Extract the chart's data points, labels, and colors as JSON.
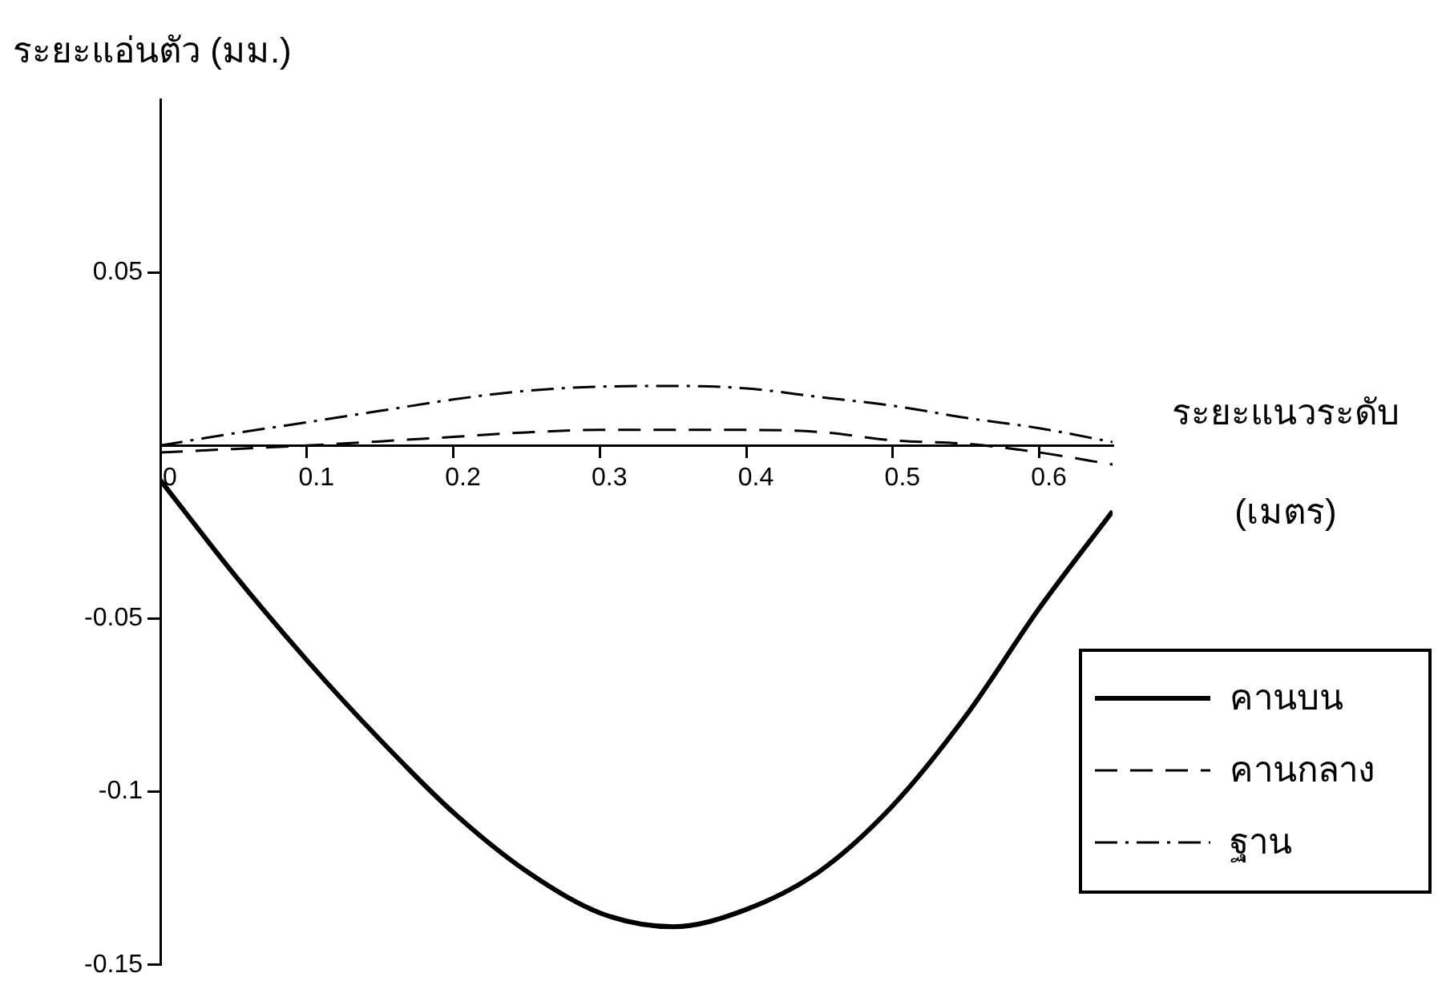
{
  "chart_data": {
    "type": "line",
    "xlabel": "ระยะแนวระดับ (เมตร)",
    "ylabel": "ระยะแอ่นตัว (มม.)",
    "x": [
      0,
      0.05,
      0.1,
      0.15,
      0.2,
      0.25,
      0.3,
      0.35,
      0.4,
      0.45,
      0.5,
      0.55,
      0.6,
      0.65
    ],
    "series": [
      {
        "name": "คานบน",
        "color": "#000000",
        "line_style": "solid",
        "values": [
          -0.01,
          -0.037,
          -0.062,
          -0.085,
          -0.106,
          -0.123,
          -0.135,
          -0.139,
          -0.134,
          -0.123,
          -0.104,
          -0.078,
          -0.047,
          -0.019
        ]
      },
      {
        "name": "คานกลาง",
        "color": "#000000",
        "line_style": "dashed",
        "values": [
          -0.002,
          -0.001,
          0,
          0.0012,
          0.0025,
          0.0038,
          0.0045,
          0.0045,
          0.0045,
          0.0039,
          0.0015,
          0.0005,
          -0.002,
          -0.0055
        ]
      },
      {
        "name": "ฐาน",
        "color": "#000000",
        "line_style": "dashdot",
        "values": [
          0,
          0.0035,
          0.0067,
          0.01,
          0.0133,
          0.0158,
          0.017,
          0.0172,
          0.0165,
          0.014,
          0.0115,
          0.008,
          0.005,
          0.001
        ]
      }
    ],
    "xlim": [
      0,
      0.65
    ],
    "xticks": [
      0,
      0.1,
      0.2,
      0.3,
      0.4,
      0.5,
      0.6
    ],
    "ylim": [
      -0.15,
      0.1
    ],
    "yticks": [
      -0.15,
      -0.1,
      -0.05,
      0.05
    ],
    "legend": "bottom right"
  }
}
